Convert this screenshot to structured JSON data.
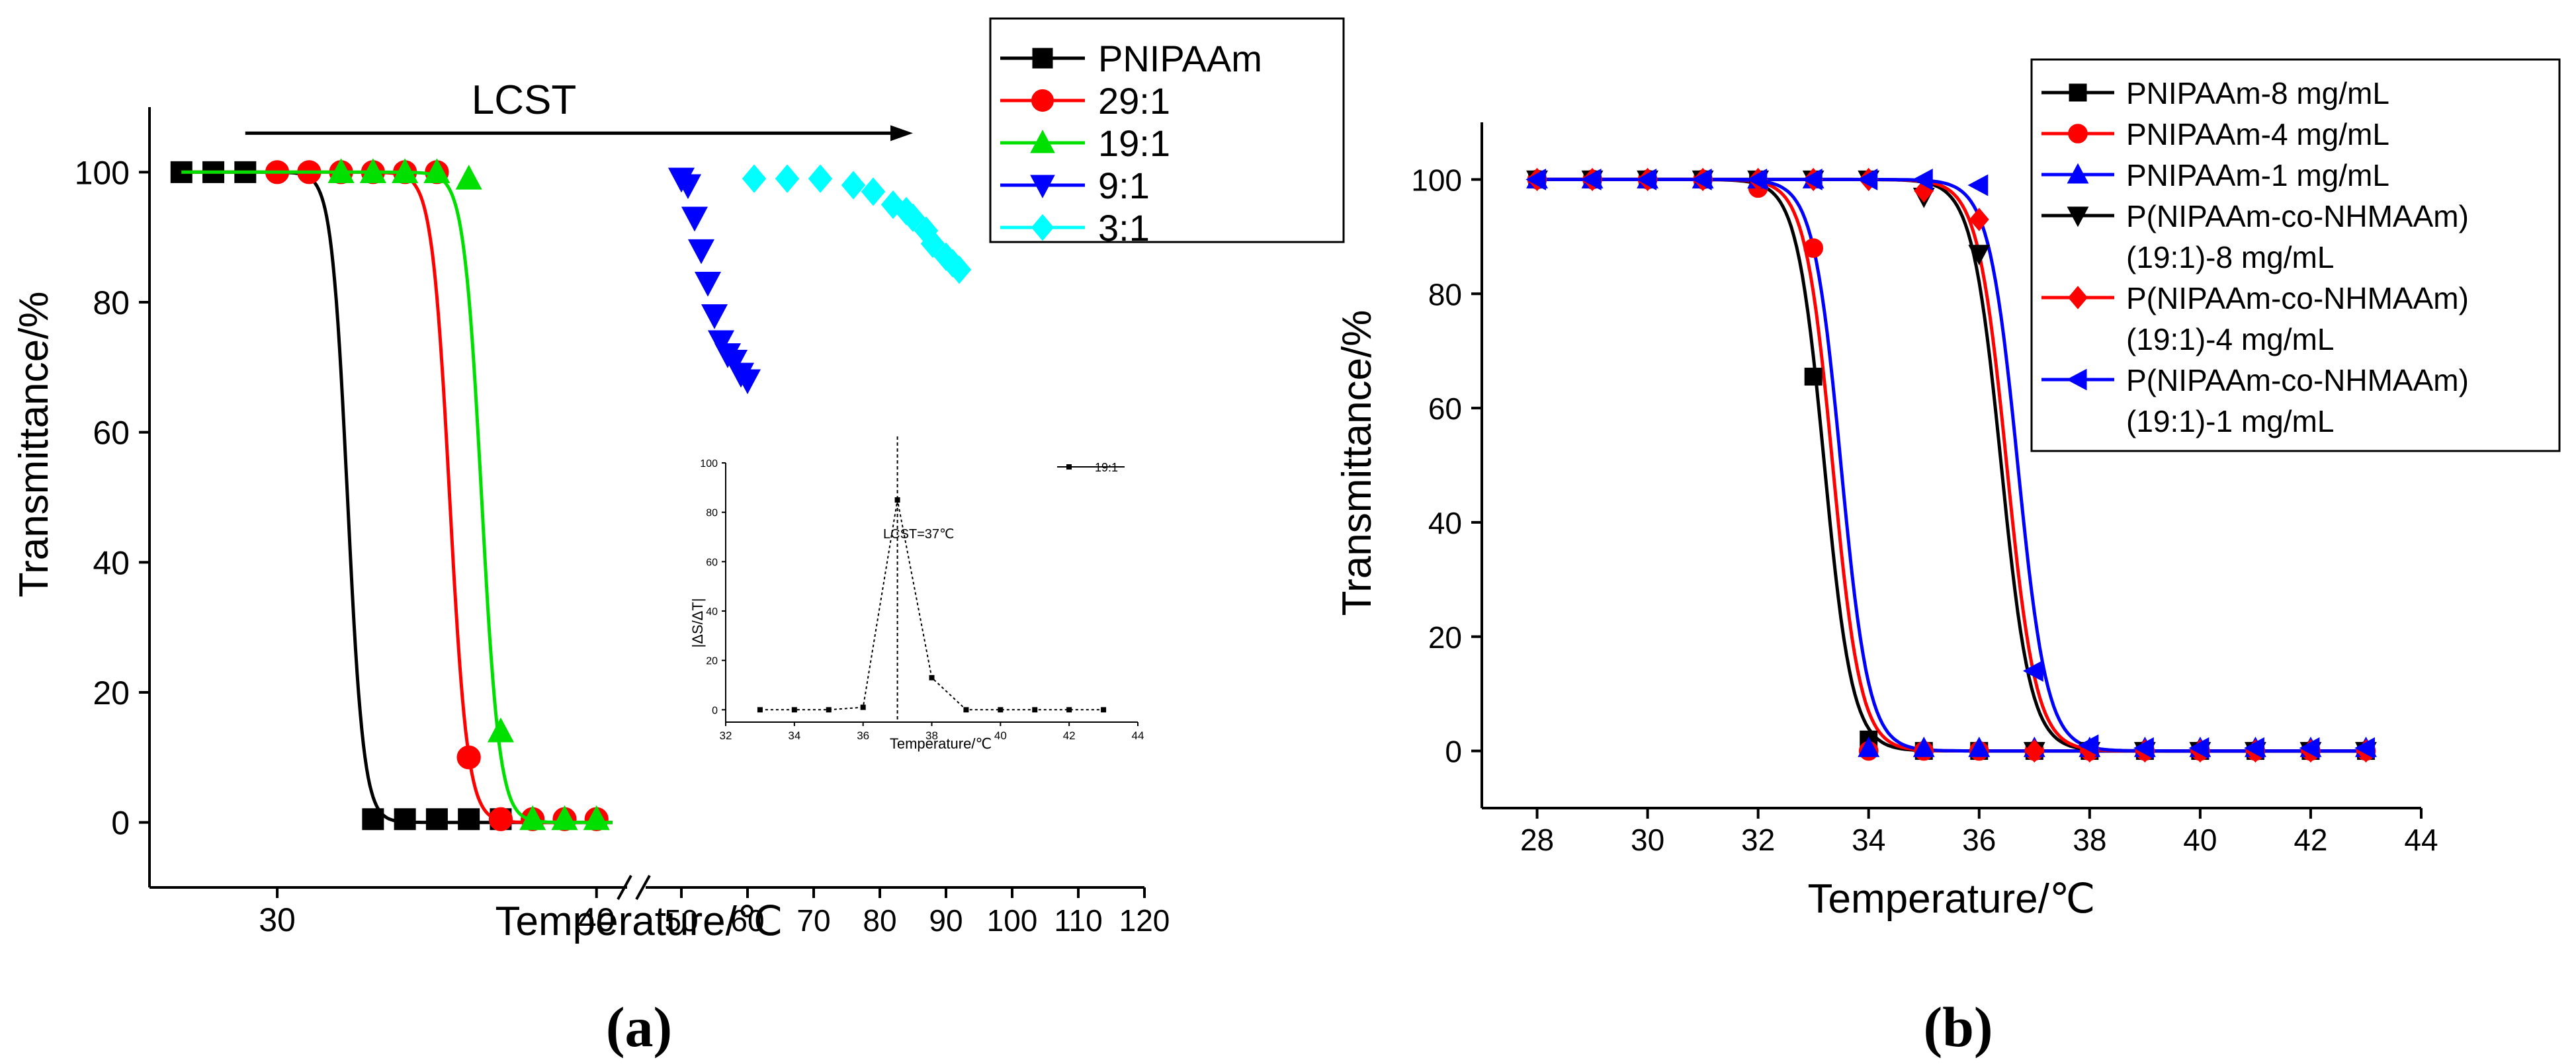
{
  "colors": {
    "black": "#000000",
    "red": "#ff0000",
    "green": "#00e000",
    "blue": "#0000ff",
    "cyan": "#00ffff"
  },
  "chart_data": [
    {
      "panel": "(a)",
      "panel_letter": "a",
      "type": "scatter",
      "xlabel": "Temperature/℃",
      "ylabel": "Transmittance/%",
      "xlim_left": [
        26,
        41
      ],
      "xlim_right": [
        45,
        120
      ],
      "ylim": [
        -10,
        110
      ],
      "x_ticks_left": [
        30,
        40
      ],
      "x_ticks_right": [
        50,
        60,
        70,
        80,
        90,
        100,
        110,
        120
      ],
      "y_ticks": [
        0,
        20,
        40,
        60,
        80,
        100
      ],
      "annotation": "LCST",
      "annotation_arrow_x": [
        29,
        85
      ],
      "annotation_arrow_y": 106,
      "legend": [
        "PNIPAAm",
        "29:1",
        "19:1",
        "9:1",
        "3:1"
      ],
      "series": [
        {
          "name": "PNIPAAm",
          "color": "#000000",
          "marker": "square",
          "x": [
            27,
            28,
            29,
            33,
            34,
            35,
            36,
            37
          ],
          "y": [
            100,
            100,
            100,
            0.5,
            0.5,
            0.5,
            0.5,
            0.5
          ],
          "fit": {
            "x0": 32.2,
            "k": 4
          }
        },
        {
          "name": "29:1",
          "color": "#ff0000",
          "marker": "circle",
          "x": [
            30,
            31,
            32,
            33,
            34,
            35,
            36,
            37,
            38,
            39,
            40
          ],
          "y": [
            100,
            100,
            100,
            100,
            100,
            100,
            10,
            0.5,
            0.5,
            0.5,
            0.5
          ],
          "fit": {
            "x0": 35.4,
            "k": 3.6
          }
        },
        {
          "name": "19:1",
          "color": "#00e000",
          "marker": "triangle-up",
          "x": [
            32,
            33,
            34,
            35,
            36,
            37,
            38,
            39,
            40
          ],
          "y": [
            100,
            100,
            100,
            100,
            99,
            14,
            0.5,
            0.5,
            0.5
          ],
          "fit": {
            "x0": 36.4,
            "k": 3.6
          }
        },
        {
          "name": "9:1",
          "color": "#0000ff",
          "marker": "triangle-down",
          "x": [
            50,
            51,
            52,
            53,
            54,
            55,
            56,
            57,
            58,
            59,
            60
          ],
          "y": [
            99,
            98,
            93,
            88,
            83,
            78,
            74,
            72,
            71,
            69,
            68
          ]
        },
        {
          "name": "3:1",
          "color": "#00ffff",
          "marker": "diamond",
          "x": [
            61,
            66,
            71,
            76,
            79,
            82,
            84,
            85,
            87,
            88,
            90,
            91,
            92
          ],
          "y": [
            99,
            99,
            99,
            98,
            97,
            95,
            94,
            93,
            91,
            89,
            87,
            86,
            85
          ]
        }
      ],
      "inset": {
        "type": "line",
        "xlabel": "Temperature/℃",
        "ylabel": "|ΔS/ΔT|",
        "xlim": [
          32,
          44
        ],
        "ylim": [
          -5,
          100
        ],
        "x_ticks": [
          32,
          34,
          36,
          38,
          40,
          42,
          44
        ],
        "y_ticks": [
          0,
          20,
          40,
          60,
          80,
          100
        ],
        "annotation": "LCST=37℃",
        "vline_x": 37,
        "legend": [
          "19:1"
        ],
        "x": [
          33,
          34,
          35,
          36,
          37,
          38,
          39,
          40,
          41,
          42,
          43
        ],
        "y": [
          0,
          0,
          0,
          1,
          85,
          13,
          0,
          0,
          0,
          0,
          0
        ]
      }
    },
    {
      "panel": "(b)",
      "panel_letter": "b",
      "type": "scatter",
      "xlabel": "Temperature/℃",
      "ylabel": "Transmittance/%",
      "xlim": [
        27,
        44
      ],
      "ylim": [
        -10,
        110
      ],
      "x_ticks": [
        28,
        30,
        32,
        34,
        36,
        38,
        40,
        42,
        44
      ],
      "y_ticks": [
        0,
        20,
        40,
        60,
        80,
        100
      ],
      "legend": [
        "PNIPAAm-8 mg/mL",
        "PNIPAAm-4 mg/mL",
        "PNIPAAm-1 mg/mL",
        "P(NIPAAm-co-NHMAAm)",
        "(19:1)-8 mg/mL",
        "P(NIPAAm-co-NHMAAm)",
        "(19:1)-4 mg/mL",
        "P(NIPAAm-co-NHMAAm)",
        "(19:1)-1 mg/mL"
      ],
      "series": [
        {
          "name": "PNIPAAm-8 mg/mL",
          "color": "#000000",
          "marker": "square",
          "x": [
            28,
            29,
            30,
            31,
            32,
            33,
            34,
            35,
            36,
            37,
            38,
            39,
            40,
            41,
            42,
            43
          ],
          "y": [
            100,
            100,
            100,
            100,
            99.5,
            65.5,
            2,
            0,
            0,
            0,
            0,
            0,
            0,
            0,
            0,
            0
          ],
          "fit": {
            "x0": 33.2,
            "k": 4
          }
        },
        {
          "name": "PNIPAAm-4 mg/mL",
          "color": "#ff0000",
          "marker": "circle",
          "x": [
            28,
            29,
            30,
            31,
            32,
            33,
            34,
            35,
            36,
            37,
            38,
            39,
            40,
            41,
            42,
            43
          ],
          "y": [
            100,
            100,
            100,
            100,
            98.5,
            88,
            0,
            0,
            0,
            0,
            0,
            0,
            0,
            0,
            0,
            0
          ],
          "fit": {
            "x0": 33.35,
            "k": 4
          }
        },
        {
          "name": "PNIPAAm-1 mg/mL",
          "color": "#0000ff",
          "marker": "triangle-up",
          "x": [
            28,
            29,
            30,
            31,
            32,
            33,
            34,
            35,
            36,
            37,
            38,
            39,
            40,
            41,
            42,
            43
          ],
          "y": [
            100,
            100,
            100,
            100,
            100,
            100,
            0.5,
            0.5,
            0.5,
            0.5,
            0.5,
            0.5,
            0.5,
            0.5,
            0.5,
            0.5
          ],
          "fit": {
            "x0": 33.5,
            "k": 4
          }
        },
        {
          "name": "P(NIPAAm-co-NHMAAm)(19:1)-8 mg/mL",
          "color": "#000000",
          "marker": "triangle-down",
          "x": [
            28,
            29,
            30,
            31,
            32,
            33,
            34,
            35,
            36,
            37,
            38,
            39,
            40,
            41,
            42,
            43
          ],
          "y": [
            100,
            100,
            100,
            100,
            100,
            100,
            100,
            97,
            87,
            0,
            0,
            0,
            0,
            0,
            0,
            0
          ],
          "fit": {
            "x0": 36.4,
            "k": 3.8
          }
        },
        {
          "name": "P(NIPAAm-co-NHMAAm)(19:1)-4 mg/mL",
          "color": "#ff0000",
          "marker": "diamond",
          "x": [
            28,
            29,
            30,
            31,
            32,
            33,
            34,
            35,
            36,
            37,
            38,
            39,
            40,
            41,
            42,
            43
          ],
          "y": [
            100,
            100,
            100,
            100,
            100,
            100,
            100,
            98,
            93,
            0,
            0,
            0,
            0,
            0,
            0,
            0
          ],
          "fit": {
            "x0": 36.5,
            "k": 3.8
          }
        },
        {
          "name": "P(NIPAAm-co-NHMAAm)(19:1)-1 mg/mL",
          "color": "#0000ff",
          "marker": "triangle-left",
          "x": [
            28,
            29,
            30,
            31,
            32,
            33,
            34,
            35,
            36,
            37,
            38,
            39,
            40,
            41,
            42,
            43
          ],
          "y": [
            100,
            100,
            100,
            100,
            100,
            100,
            100,
            100,
            99,
            14,
            1,
            0.5,
            0.5,
            0.5,
            0.5,
            0.5
          ],
          "fit": {
            "x0": 36.7,
            "k": 3.8
          }
        }
      ]
    }
  ]
}
